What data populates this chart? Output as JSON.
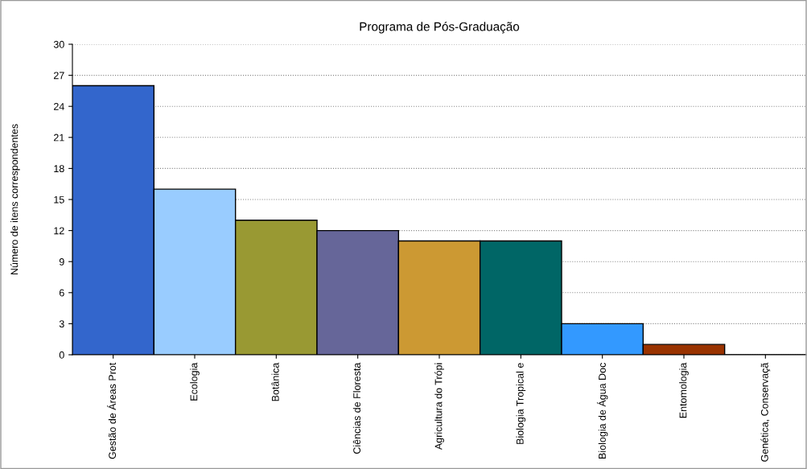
{
  "chart_data": {
    "type": "bar",
    "title": "Programa de Pós-Graduação",
    "ylabel": "Número de itens correspondentes",
    "categories": [
      "Gestão de Áreas Prot",
      "Ecologia",
      "Botânica",
      "Ciências de Floresta",
      "Agricultura do Trópi",
      "Biologia Tropical e",
      "Biologia de Água Doc",
      "Entomologia",
      "Genética, Conservaçã"
    ],
    "values": [
      26,
      16,
      13,
      12,
      11,
      11,
      3,
      1,
      0
    ],
    "colors": [
      "#3366cc",
      "#99ccff",
      "#999933",
      "#666699",
      "#cc9933",
      "#006666",
      "#3399ff",
      "#993300",
      "#000000"
    ],
    "ylim": [
      0,
      30
    ],
    "yticks": [
      0,
      3,
      6,
      9,
      12,
      15,
      18,
      21,
      24,
      27,
      30
    ],
    "grid": "y"
  }
}
